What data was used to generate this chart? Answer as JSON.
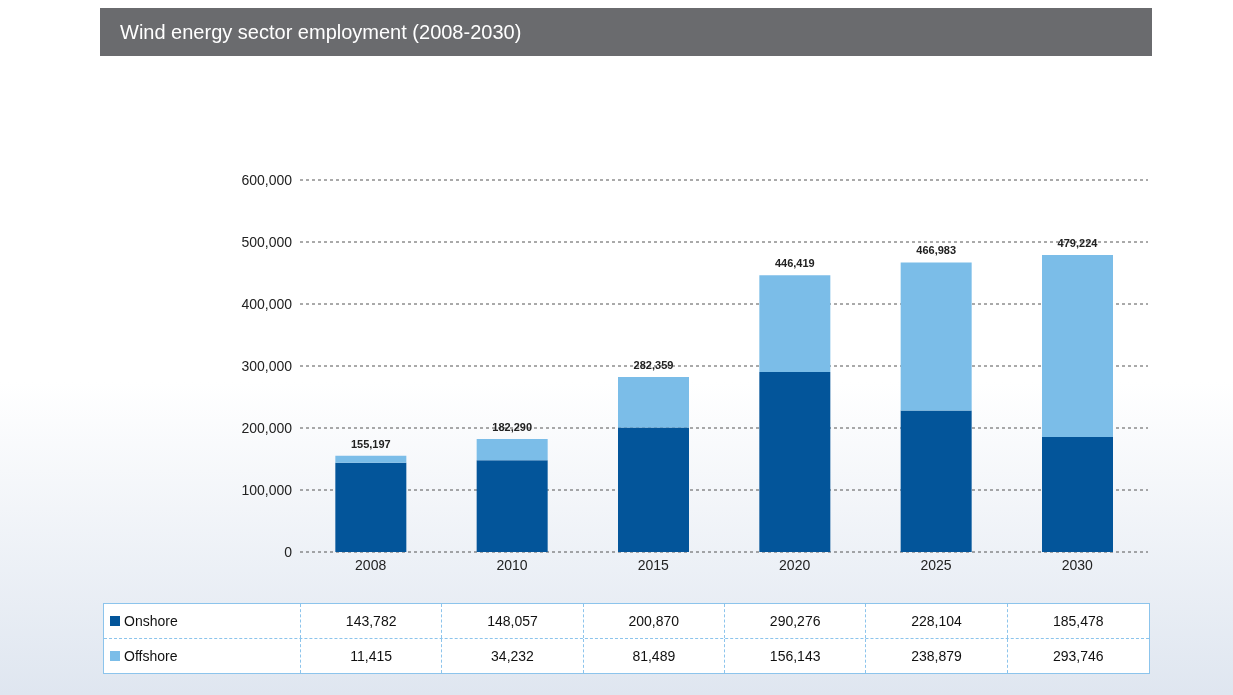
{
  "chart_data": {
    "type": "bar",
    "title": "Wind energy sector employment (2008-2030)",
    "categories": [
      "2008",
      "2010",
      "2015",
      "2020",
      "2025",
      "2030"
    ],
    "series": [
      {
        "name": "Onshore",
        "color": "#03559a",
        "values": [
          143782,
          148057,
          200870,
          290276,
          228104,
          185478
        ],
        "value_labels": [
          "143,782",
          "148,057",
          "200,870",
          "290,276",
          "228,104",
          "185,478"
        ]
      },
      {
        "name": "Offshore",
        "color": "#7bbde8",
        "values": [
          11415,
          34232,
          81489,
          156143,
          238879,
          293746
        ],
        "value_labels": [
          "11,415",
          "34,232",
          "81,489",
          "156,143",
          "238,879",
          "293,746"
        ]
      }
    ],
    "stacked": true,
    "totals": [
      "155,197",
      "182,290",
      "282,359",
      "446,419",
      "466,983",
      "479,224"
    ],
    "ylim": [
      0,
      600000
    ],
    "yticks": [
      {
        "value": 0,
        "label": "0"
      },
      {
        "value": 100000,
        "label": "100,000"
      },
      {
        "value": 200000,
        "label": "200,000"
      },
      {
        "value": 300000,
        "label": "300,000"
      },
      {
        "value": 400000,
        "label": "400,000"
      },
      {
        "value": 500000,
        "label": "500,000"
      },
      {
        "value": 600000,
        "label": "600,000"
      }
    ],
    "grid": "y",
    "legend": "bottom"
  }
}
